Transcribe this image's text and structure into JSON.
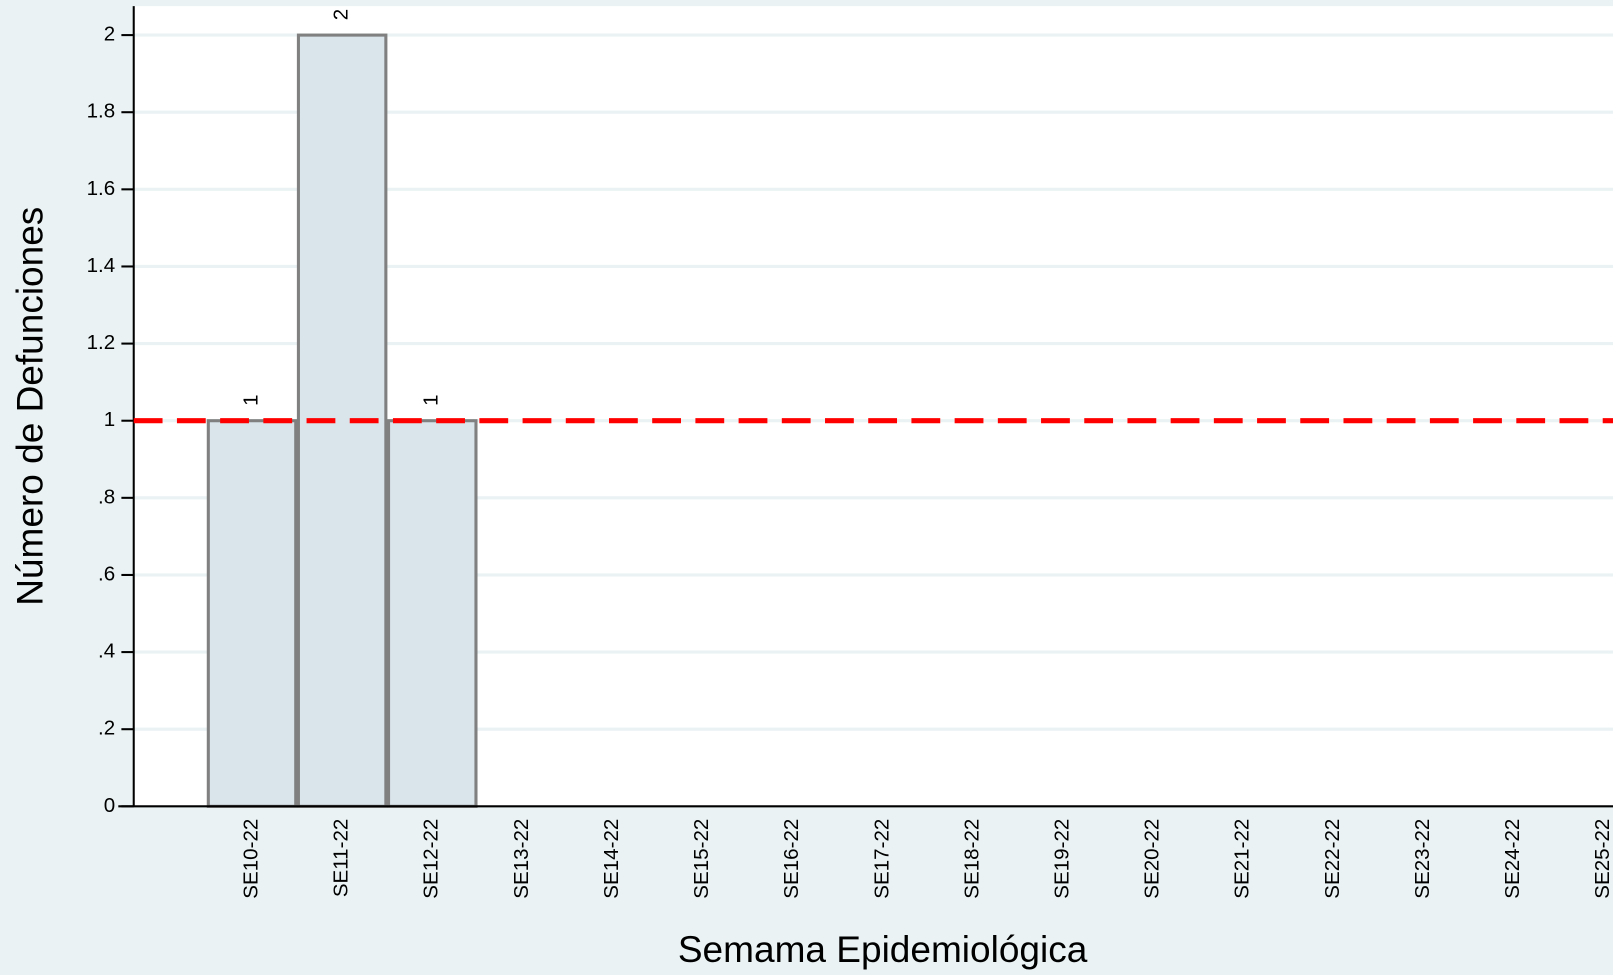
{
  "chart_data": {
    "type": "bar",
    "x_label": "Semama Epidemiológica",
    "y_label": "Número de Defunciones",
    "categories": [
      "SE10-22",
      "SE11-22",
      "SE12-22",
      "SE13-22",
      "SE14-22",
      "SE15-22",
      "SE16-22",
      "SE17-22",
      "SE18-22",
      "SE19-22",
      "SE20-22",
      "SE21-22",
      "SE22-22",
      "SE23-22",
      "SE24-22",
      "SE25-22"
    ],
    "values": [
      1,
      2,
      1,
      null,
      null,
      null,
      null,
      null,
      null,
      null,
      null,
      null,
      null,
      null,
      null,
      null
    ],
    "color": "#d9e5eb",
    "edge_color": "#808080",
    "ylim": [
      0,
      2.075
    ],
    "yticks": [
      0,
      {
        "value": 0.2,
        "label": ".2"
      },
      {
        "value": 0.4,
        "label": ".4"
      },
      {
        "value": 0.6,
        "label": ".6"
      },
      {
        "value": 0.8,
        "label": ".8"
      },
      1,
      1.2,
      1.4,
      1.6,
      1.8,
      2
    ],
    "grid": true,
    "reference_line": {
      "value": 1,
      "color": "#ff0000"
    }
  }
}
